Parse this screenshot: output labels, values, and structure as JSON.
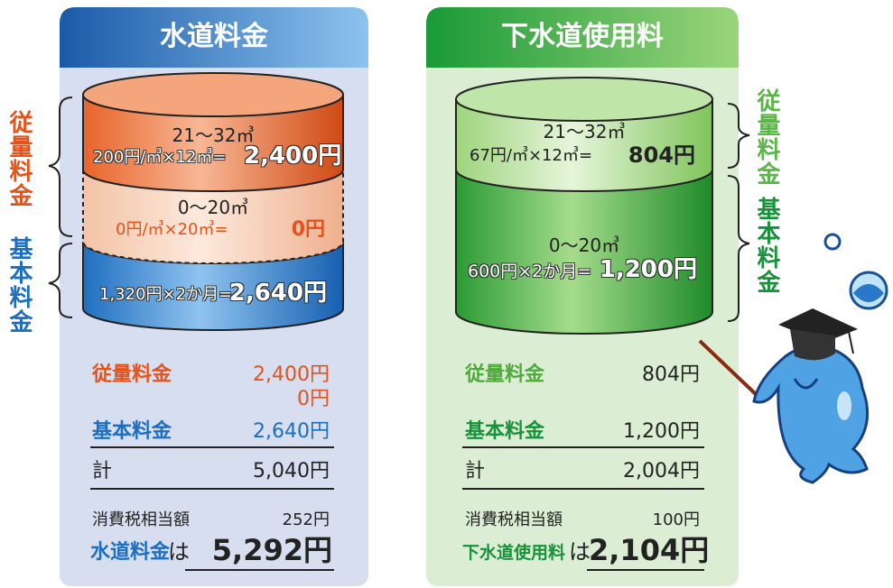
{
  "water": {
    "title": "水道料金",
    "side_labels": {
      "usage": "従量料金",
      "basic": "基本料金"
    },
    "tiers": [
      {
        "range": "21〜32㎥",
        "formula": "200円/㎥×12㎥=",
        "amount": "2,400円"
      },
      {
        "range": "0〜20㎥",
        "formula": "0円/㎥×20㎥=",
        "amount": "0円"
      },
      {
        "formula": "1,320円×2か月=",
        "amount": "2,640円"
      }
    ],
    "summary": {
      "usage_label": "従量料金",
      "usage_amount": "2,400円",
      "usage_amount_2": "0円",
      "basic_label": "基本料金",
      "basic_amount": "2,640円",
      "total_label": "計",
      "total_amount": "5,040円",
      "tax_label": "消費税相当額",
      "tax_amount": "252円",
      "final_label": "水道料金",
      "final_particle": "は",
      "final_amount": "5,292円"
    }
  },
  "sewer": {
    "title": "下水道使用料",
    "side_labels": {
      "usage": "従量料金",
      "basic": "基本料金"
    },
    "tiers": [
      {
        "range": "21〜32㎥",
        "formula": "67円/㎥×12㎥=",
        "amount": "804円"
      },
      {
        "range": "0〜20㎥",
        "formula": "600円×2か月=",
        "amount": "1,200円"
      }
    ],
    "summary": {
      "usage_label": "従量料金",
      "usage_amount": "804円",
      "basic_label": "基本料金",
      "basic_amount": "1,200円",
      "total_label": "計",
      "total_amount": "2,004円",
      "tax_label": "消費税相当額",
      "tax_amount": "100円",
      "final_label": "下水道使用料",
      "final_particle": "は",
      "final_amount": "2,104円"
    }
  }
}
